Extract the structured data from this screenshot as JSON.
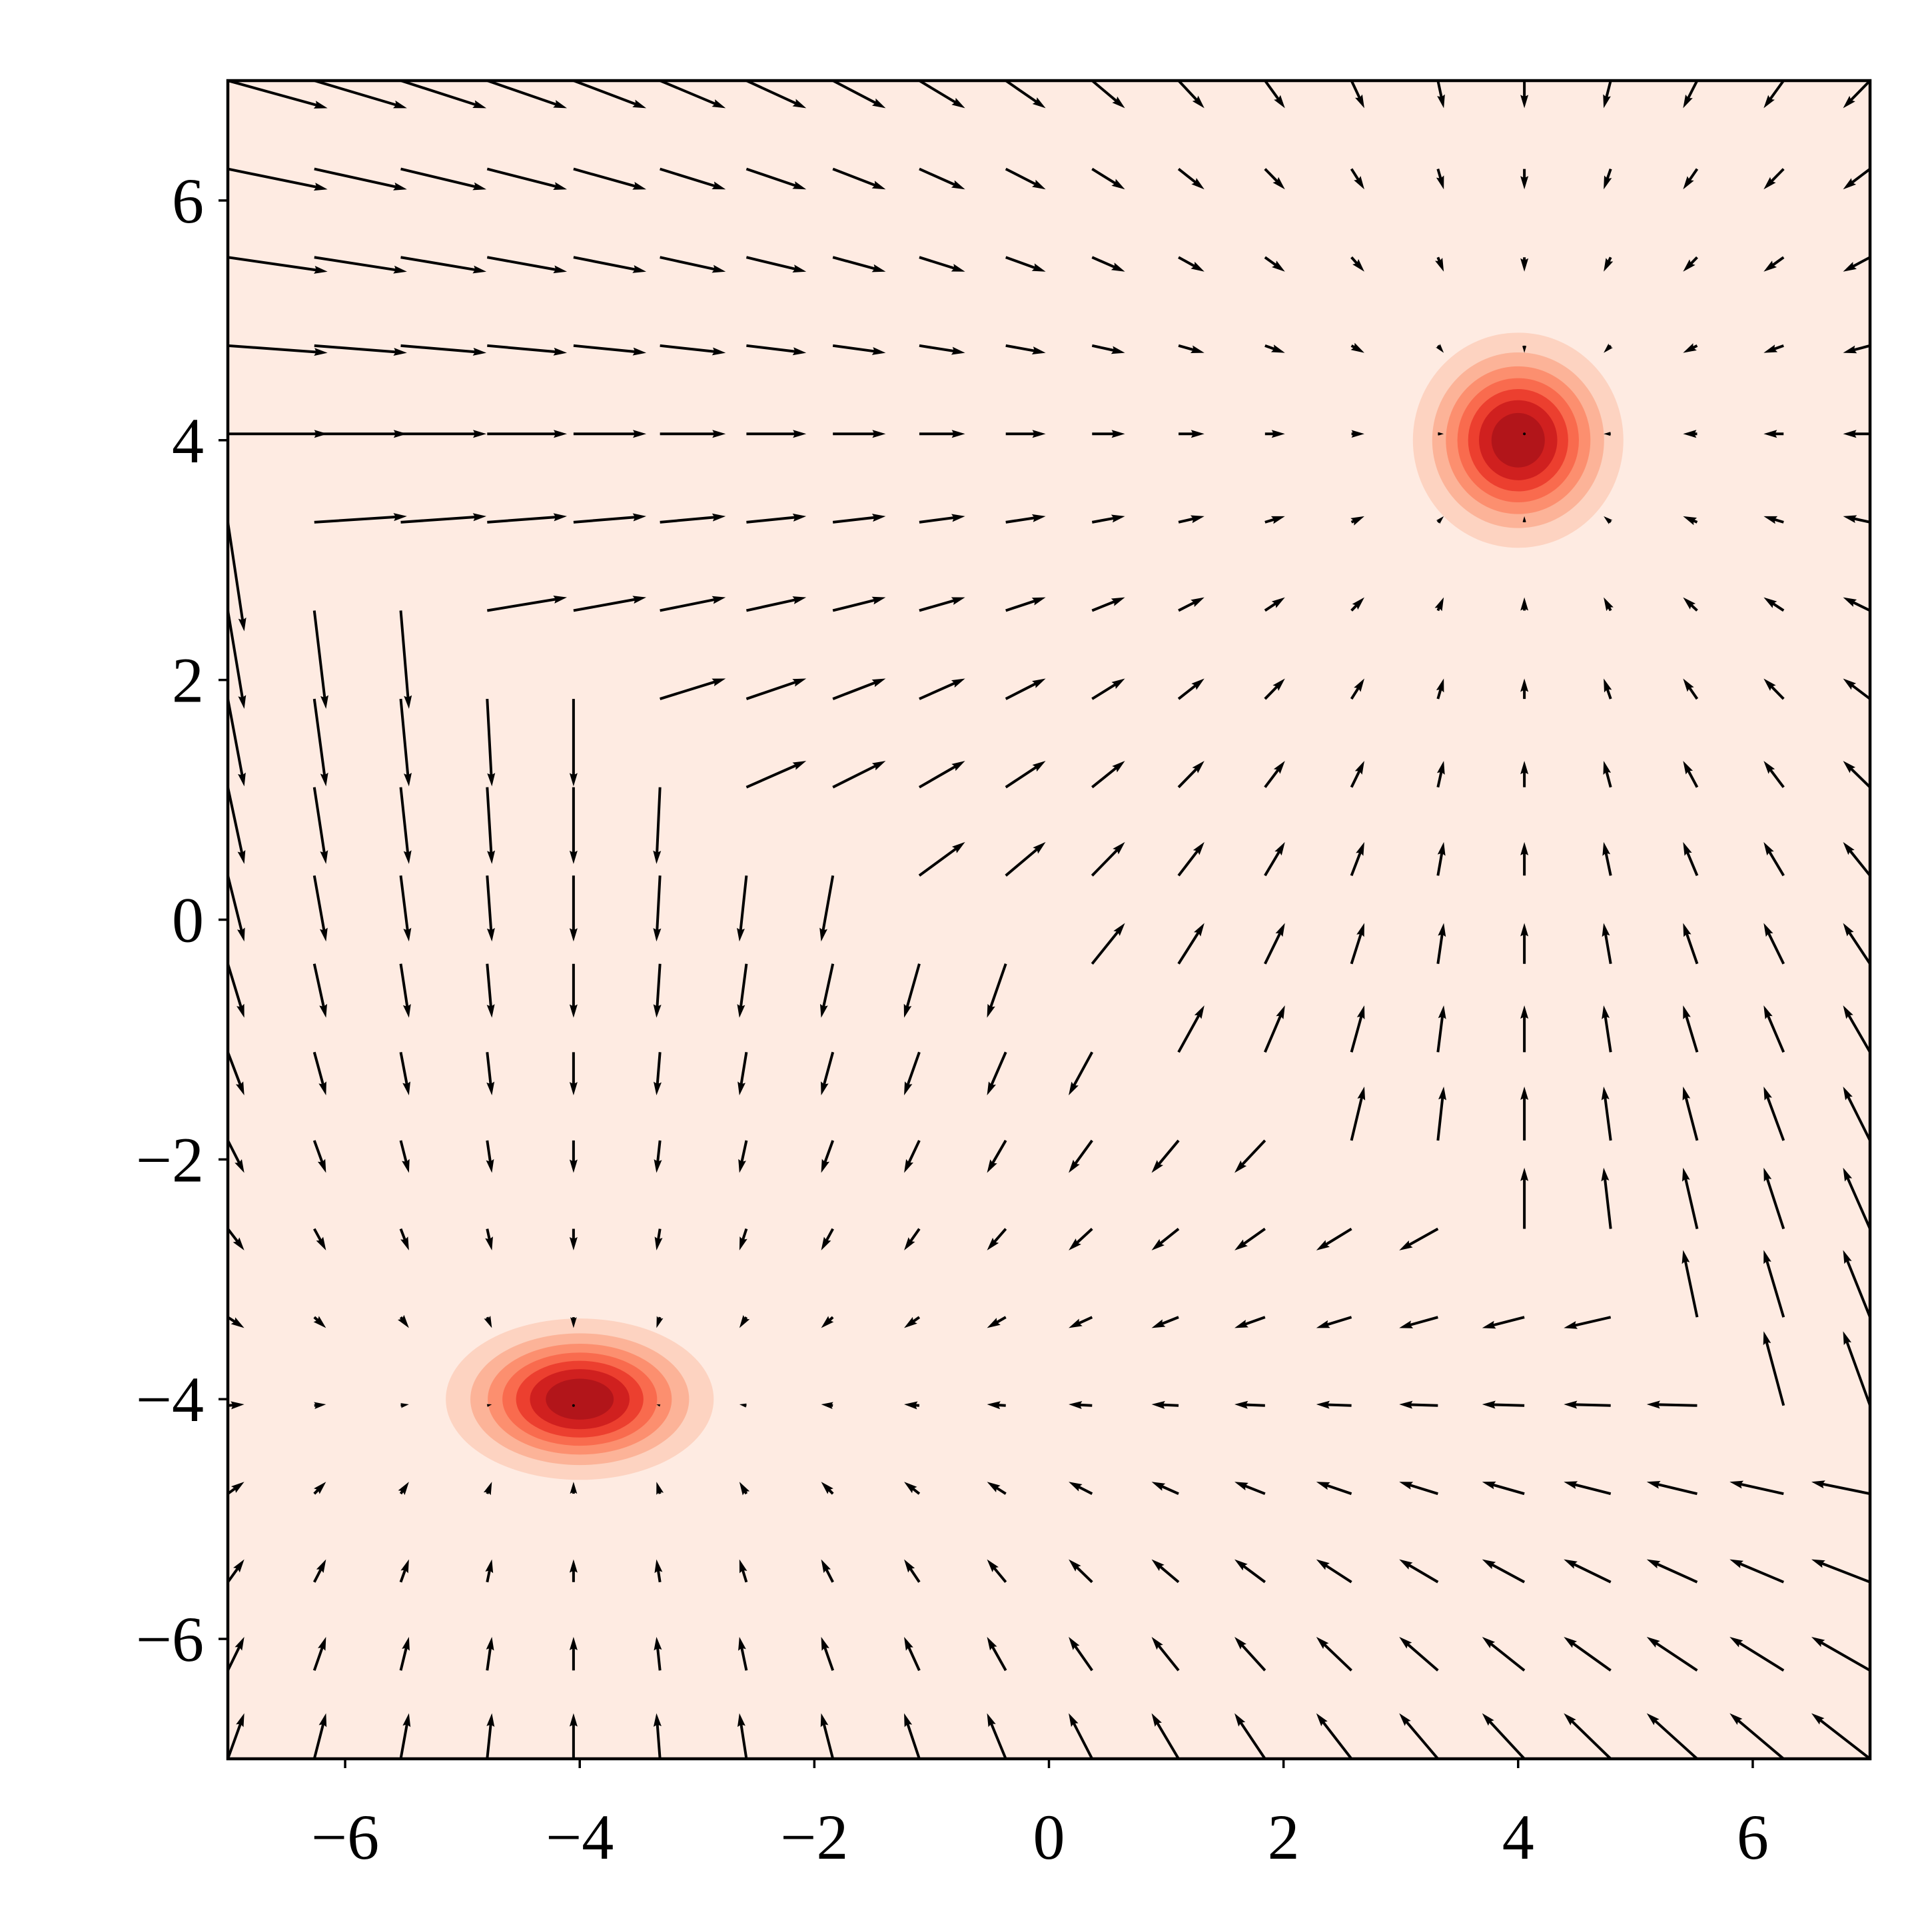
{
  "chart_data": {
    "type": "quiver",
    "xlim": [
      -7,
      7
    ],
    "ylim": [
      -7,
      7
    ],
    "xticks": [
      {
        "value": -6,
        "label": "−6"
      },
      {
        "value": -4,
        "label": "−4"
      },
      {
        "value": -2,
        "label": "−2"
      },
      0,
      2,
      4,
      6
    ],
    "yticks": [
      {
        "value": -6,
        "label": "−6"
      },
      {
        "value": -4,
        "label": "−4"
      },
      {
        "value": -2,
        "label": "−2"
      },
      0,
      2,
      4,
      6
    ],
    "grid": false,
    "color": "#000000",
    "x": [
      -7,
      -6.263,
      -5.526,
      -4.789,
      -4.053,
      -3.316,
      -2.579,
      -1.842,
      -1.105,
      -0.368,
      0.368,
      1.105,
      1.842,
      2.579,
      3.316,
      4.053,
      4.789,
      5.526,
      6.263,
      7
    ],
    "y": [
      -7,
      -6.263,
      -5.526,
      -4.789,
      -4.053,
      -3.316,
      -2.579,
      -1.842,
      -1.105,
      -0.368,
      0.368,
      1.105,
      1.842,
      2.579,
      3.316,
      4.053,
      4.789,
      5.526,
      6.263,
      7
    ],
    "u": [
      [
        0.14,
        0.1,
        0.07,
        0.04,
        0,
        -0.03,
        -0.06,
        -0.1,
        -0.13,
        -0.16,
        -0.2,
        -0.23,
        -0.26,
        -0.3,
        -0.33,
        -0.36,
        -0.4,
        -0.43,
        -0.46,
        -0.5
      ],
      [
        0.14,
        0.1,
        0.07,
        0.04,
        0,
        -0.03,
        -0.06,
        -0.1,
        -0.13,
        -0.16,
        -0.2,
        -0.23,
        -0.26,
        -0.3,
        -0.33,
        -0.36,
        -0.4,
        -0.43,
        -0.46,
        -0.5
      ],
      [
        0.14,
        0.1,
        0.07,
        0.04,
        0,
        -0.03,
        -0.06,
        -0.1,
        -0.13,
        -0.16,
        -0.2,
        -0.23,
        -0.26,
        -0.3,
        -0.33,
        -0.36,
        -0.4,
        -0.43,
        -0.46,
        -0.5
      ],
      [
        0.14,
        0.1,
        0.07,
        0.04,
        0,
        -0.03,
        -0.06,
        -0.1,
        -0.13,
        -0.16,
        -0.2,
        -0.23,
        -0.26,
        -0.3,
        -0.33,
        -0.36,
        -0.4,
        -0.43,
        -0.46,
        -0.5
      ],
      [
        0.14,
        0.1,
        0.07,
        0.04,
        0,
        -0.03,
        -0.06,
        -0.1,
        -0.13,
        -0.16,
        -0.2,
        -0.23,
        -0.26,
        -0.3,
        -0.33,
        -0.36,
        -0.4,
        -0.43,
        -0.17,
        -0.23
      ],
      [
        0.14,
        0.1,
        0.07,
        0.04,
        0,
        -0.03,
        -0.06,
        -0.1,
        -0.13,
        -0.16,
        -0.2,
        -0.23,
        -0.26,
        -0.3,
        -0.33,
        -0.36,
        -0.4,
        -0.12,
        -0.17,
        -0.23
      ],
      [
        0.14,
        0.1,
        0.07,
        0.04,
        0,
        -0.03,
        -0.06,
        -0.1,
        -0.13,
        -0.16,
        -0.2,
        -0.23,
        -0.26,
        -0.3,
        -0.33,
        0,
        -0.06,
        -0.12,
        -0.17,
        -0.23
      ],
      [
        0.14,
        0.1,
        0.07,
        0.04,
        0,
        -0.03,
        -0.06,
        -0.1,
        -0.13,
        -0.16,
        -0.2,
        -0.23,
        -0.26,
        0.11,
        0.05,
        0,
        -0.06,
        -0.12,
        -0.17,
        -0.23
      ],
      [
        0.14,
        0.1,
        0.07,
        0.04,
        0,
        -0.03,
        -0.06,
        -0.1,
        -0.13,
        -0.16,
        -0.2,
        0.22,
        0.17,
        0.11,
        0.05,
        0,
        -0.06,
        -0.12,
        -0.17,
        -0.23
      ],
      [
        0.14,
        0.1,
        0.07,
        0.04,
        0,
        -0.03,
        -0.06,
        -0.1,
        -0.13,
        -0.16,
        0.28,
        0.22,
        0.17,
        0.11,
        0.05,
        0,
        -0.06,
        -0.12,
        -0.17,
        -0.23
      ],
      [
        0.14,
        0.1,
        0.07,
        0.04,
        0,
        -0.03,
        -0.06,
        -0.1,
        0.39,
        0.34,
        0.28,
        0.22,
        0.17,
        0.11,
        0.05,
        0,
        -0.06,
        -0.12,
        -0.17,
        -0.23
      ],
      [
        0.14,
        0.1,
        0.07,
        0.04,
        0,
        -0.03,
        0.51,
        0.45,
        0.39,
        0.34,
        0.28,
        0.22,
        0.17,
        0.11,
        0.05,
        0,
        -0.06,
        -0.12,
        -0.17,
        -0.23
      ],
      [
        0.14,
        0.1,
        0.07,
        0.04,
        0,
        0.56,
        0.51,
        0.45,
        0.39,
        0.34,
        0.28,
        0.22,
        0.17,
        0.11,
        0.05,
        0,
        -0.06,
        -0.12,
        -0.17,
        -0.23
      ],
      [
        0.14,
        0.1,
        0.07,
        0.68,
        0.62,
        0.56,
        0.51,
        0.45,
        0.39,
        0.34,
        0.28,
        0.22,
        0.17,
        0.11,
        0.05,
        0,
        -0.06,
        -0.12,
        -0.17,
        -0.23
      ],
      [
        0.14,
        0.79,
        0.73,
        0.68,
        0.62,
        0.56,
        0.51,
        0.45,
        0.39,
        0.34,
        0.28,
        0.22,
        0.17,
        0.11,
        0.05,
        0,
        -0.06,
        -0.12,
        -0.17,
        -0.23
      ],
      [
        0.85,
        0.79,
        0.73,
        0.68,
        0.62,
        0.56,
        0.51,
        0.45,
        0.39,
        0.34,
        0.28,
        0.22,
        0.17,
        0.11,
        0.05,
        0,
        -0.06,
        -0.12,
        -0.17,
        -0.23
      ],
      [
        0.85,
        0.79,
        0.73,
        0.68,
        0.62,
        0.56,
        0.51,
        0.45,
        0.39,
        0.34,
        0.28,
        0.22,
        0.17,
        0.11,
        0.05,
        0,
        -0.06,
        -0.12,
        -0.17,
        -0.23
      ],
      [
        0.85,
        0.79,
        0.73,
        0.68,
        0.62,
        0.56,
        0.51,
        0.45,
        0.39,
        0.34,
        0.28,
        0.22,
        0.17,
        0.11,
        0.05,
        0,
        -0.06,
        -0.12,
        -0.17,
        -0.23
      ],
      [
        0.85,
        0.79,
        0.73,
        0.68,
        0.62,
        0.56,
        0.51,
        0.45,
        0.39,
        0.34,
        0.28,
        0.22,
        0.17,
        0.11,
        0.05,
        0,
        -0.06,
        -0.12,
        -0.17,
        -0.23
      ],
      [
        0.85,
        0.79,
        0.73,
        0.68,
        0.62,
        0.56,
        0.51,
        0.45,
        0.39,
        0.34,
        0.28,
        0.22,
        0.17,
        0.11,
        0.05,
        0,
        -0.06,
        -0.12,
        -0.17,
        -0.23
      ]
    ],
    "v": [
      [
        0.38,
        0.38,
        0.38,
        0.38,
        0.38,
        0.38,
        0.38,
        0.38,
        0.38,
        0.38,
        0.38,
        0.38,
        0.38,
        0.38,
        0.38,
        0.38,
        0.38,
        0.38,
        0.38,
        0.38
      ],
      [
        0.28,
        0.28,
        0.28,
        0.28,
        0.28,
        0.28,
        0.28,
        0.28,
        0.28,
        0.28,
        0.28,
        0.28,
        0.28,
        0.28,
        0.28,
        0.28,
        0.28,
        0.28,
        0.28,
        0.28
      ],
      [
        0.19,
        0.19,
        0.19,
        0.19,
        0.19,
        0.19,
        0.19,
        0.19,
        0.19,
        0.19,
        0.19,
        0.19,
        0.19,
        0.19,
        0.19,
        0.19,
        0.19,
        0.19,
        0.19,
        0.19
      ],
      [
        0.1,
        0.1,
        0.1,
        0.1,
        0.1,
        0.1,
        0.1,
        0.1,
        0.1,
        0.1,
        0.1,
        0.1,
        0.1,
        0.1,
        0.1,
        0.1,
        0.1,
        0.1,
        0.1,
        0.1
      ],
      [
        0.01,
        0.01,
        0.01,
        0.01,
        0.01,
        0.01,
        0.01,
        0.01,
        0.01,
        0.01,
        0.01,
        0.01,
        0.01,
        0.01,
        0.01,
        0.01,
        0.01,
        0.01,
        0.62,
        0.62
      ],
      [
        -0.09,
        -0.09,
        -0.09,
        -0.09,
        -0.09,
        -0.09,
        -0.09,
        -0.09,
        -0.09,
        -0.09,
        -0.09,
        -0.09,
        -0.09,
        -0.09,
        -0.09,
        -0.09,
        -0.09,
        0.56,
        0.56,
        0.56
      ],
      [
        -0.18,
        -0.18,
        -0.18,
        -0.18,
        -0.18,
        -0.18,
        -0.18,
        -0.18,
        -0.18,
        -0.18,
        -0.18,
        -0.18,
        -0.18,
        -0.18,
        -0.18,
        0.51,
        0.51,
        0.51,
        0.51,
        0.51
      ],
      [
        -0.27,
        -0.27,
        -0.27,
        -0.27,
        -0.27,
        -0.27,
        -0.27,
        -0.27,
        -0.27,
        -0.27,
        -0.27,
        -0.27,
        -0.27,
        0.45,
        0.45,
        0.45,
        0.45,
        0.45,
        0.45,
        0.45
      ],
      [
        -0.36,
        -0.36,
        -0.36,
        -0.36,
        -0.36,
        -0.36,
        -0.36,
        -0.36,
        -0.36,
        -0.36,
        -0.36,
        0.39,
        0.39,
        0.39,
        0.39,
        0.39,
        0.39,
        0.39,
        0.39,
        0.39
      ],
      [
        -0.45,
        -0.45,
        -0.45,
        -0.45,
        -0.45,
        -0.45,
        -0.45,
        -0.45,
        -0.45,
        -0.45,
        0.34,
        0.34,
        0.34,
        0.34,
        0.34,
        0.34,
        0.34,
        0.34,
        0.34,
        0.34
      ],
      [
        -0.55,
        -0.55,
        -0.55,
        -0.55,
        -0.55,
        -0.55,
        -0.55,
        -0.55,
        0.28,
        0.28,
        0.28,
        0.28,
        0.28,
        0.28,
        0.28,
        0.28,
        0.28,
        0.28,
        0.28,
        0.28
      ],
      [
        -0.64,
        -0.64,
        -0.64,
        -0.64,
        -0.64,
        -0.64,
        0.22,
        0.22,
        0.22,
        0.22,
        0.22,
        0.22,
        0.22,
        0.22,
        0.22,
        0.22,
        0.22,
        0.22,
        0.22,
        0.22
      ],
      [
        -0.73,
        -0.73,
        -0.73,
        -0.73,
        -0.73,
        0.17,
        0.17,
        0.17,
        0.17,
        0.17,
        0.17,
        0.17,
        0.17,
        0.17,
        0.17,
        0.17,
        0.17,
        0.17,
        0.17,
        0.17
      ],
      [
        -0.82,
        -0.82,
        -0.82,
        0.11,
        0.11,
        0.11,
        0.11,
        0.11,
        0.11,
        0.11,
        0.11,
        0.11,
        0.11,
        0.11,
        0.11,
        0.11,
        0.11,
        0.11,
        0.11,
        0.11
      ],
      [
        -0.91,
        0.05,
        0.05,
        0.05,
        0.05,
        0.05,
        0.05,
        0.05,
        0.05,
        0.05,
        0.05,
        0.05,
        0.05,
        0.05,
        0.05,
        0.05,
        0.05,
        0.05,
        0.05,
        0.05
      ],
      [
        0,
        0,
        0,
        0,
        0,
        0,
        0,
        0,
        0,
        0,
        0,
        0,
        0,
        0,
        0,
        0,
        0,
        0,
        0,
        0
      ],
      [
        -0.06,
        -0.06,
        -0.06,
        -0.06,
        -0.06,
        -0.06,
        -0.06,
        -0.06,
        -0.06,
        -0.06,
        -0.06,
        -0.06,
        -0.06,
        -0.06,
        -0.06,
        -0.06,
        -0.06,
        -0.06,
        -0.06,
        -0.06
      ],
      [
        -0.12,
        -0.12,
        -0.12,
        -0.12,
        -0.12,
        -0.12,
        -0.12,
        -0.12,
        -0.12,
        -0.12,
        -0.12,
        -0.12,
        -0.12,
        -0.12,
        -0.12,
        -0.12,
        -0.12,
        -0.12,
        -0.12,
        -0.12
      ],
      [
        -0.17,
        -0.17,
        -0.17,
        -0.17,
        -0.17,
        -0.17,
        -0.17,
        -0.17,
        -0.17,
        -0.17,
        -0.17,
        -0.17,
        -0.17,
        -0.17,
        -0.17,
        -0.17,
        -0.17,
        -0.17,
        -0.17,
        -0.17
      ],
      [
        -0.23,
        -0.23,
        -0.23,
        -0.23,
        -0.23,
        -0.23,
        -0.23,
        -0.23,
        -0.23,
        -0.23,
        -0.23,
        -0.23,
        -0.23,
        -0.23,
        -0.23,
        -0.23,
        -0.23,
        -0.23,
        -0.23,
        -0.23
      ]
    ],
    "contour": {
      "colors": [
        "#feebe2",
        "#fdd3c1",
        "#fcb398",
        "#fc8f6f",
        "#f96b4e",
        "#ec3f2f",
        "#d0201f",
        "#b2151a"
      ],
      "components": [
        {
          "center": [
            4,
            4
          ],
          "sigma": [
            0.44,
            0.44
          ]
        },
        {
          "center": [
            -4,
            -4
          ],
          "sigma": [
            0.56,
            0.33
          ]
        }
      ]
    }
  }
}
